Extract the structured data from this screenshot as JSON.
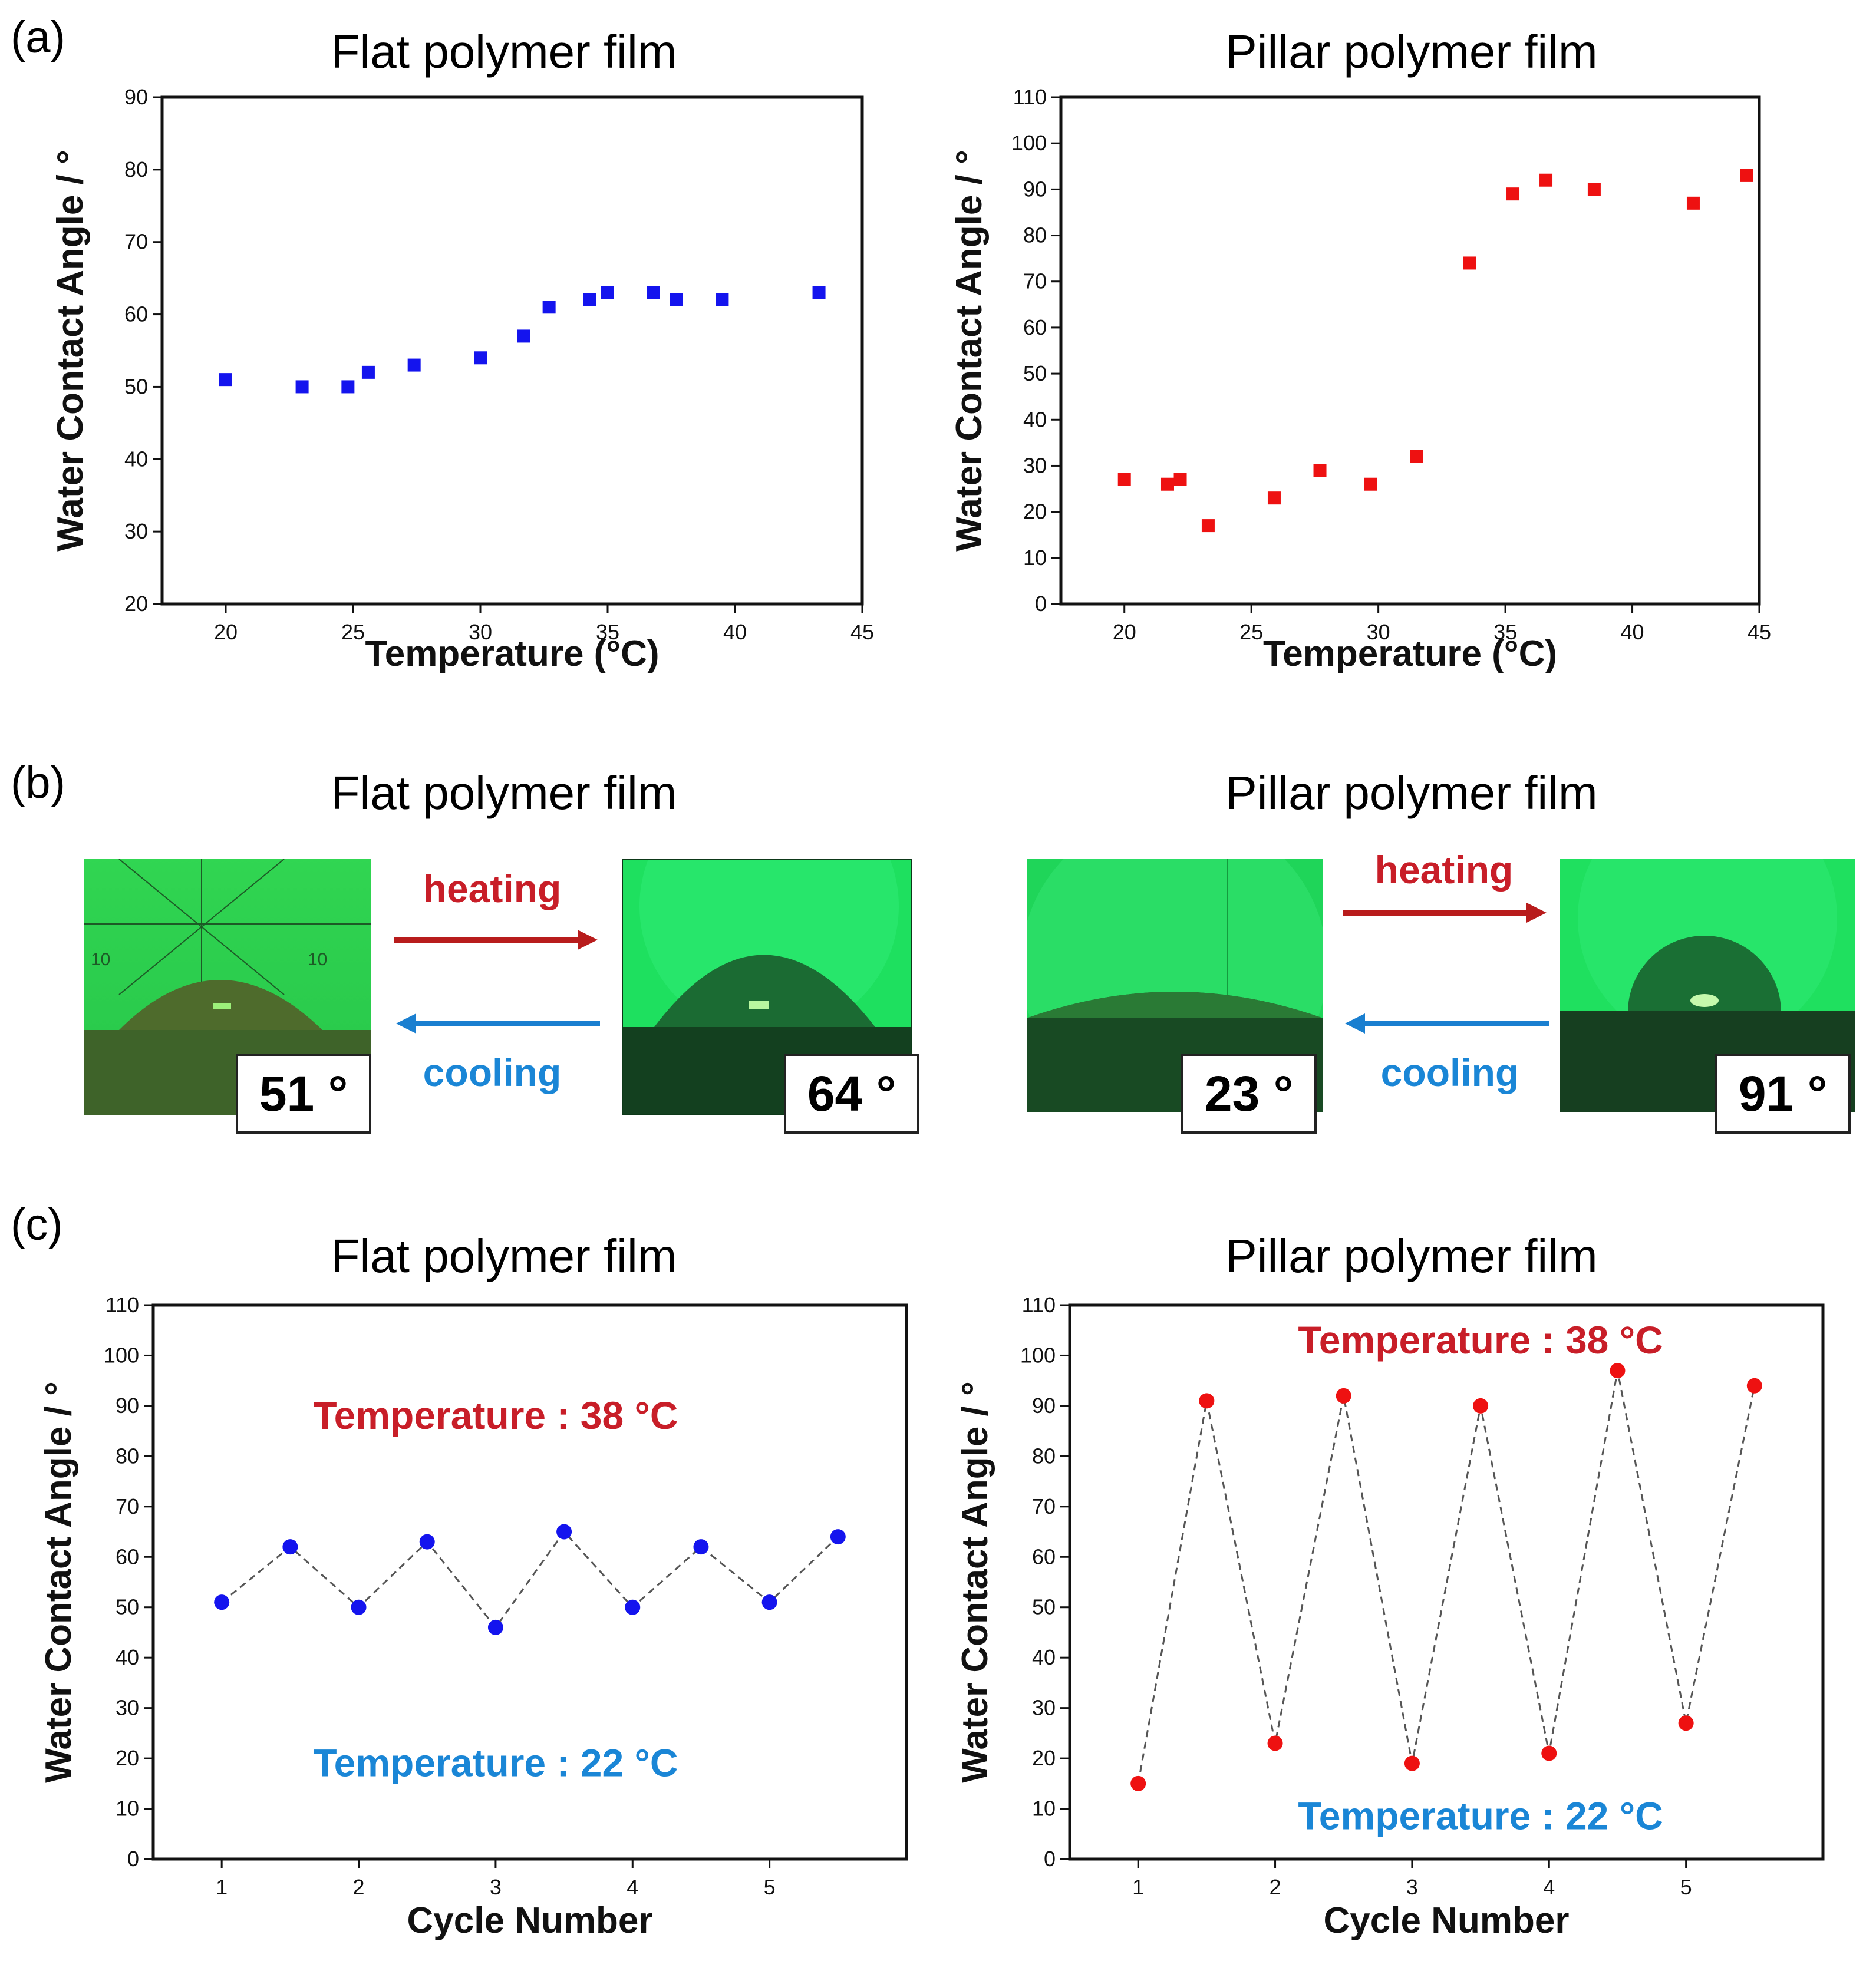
{
  "panels": {
    "a": "(a)",
    "b": "(b)",
    "c": "(c)"
  },
  "colors": {
    "blue": "#1414ee",
    "red": "#ee1111",
    "label_red": "#c81e28",
    "label_blue": "#1a86d6",
    "arrow_red": "#b81c1c",
    "arrow_blue": "#1a7fd0",
    "green_bg": "#1bd65e"
  },
  "photos": {
    "title_flat": "Flat polymer film",
    "title_pillar": "Pillar polymer film",
    "heating": "heating",
    "cooling": "cooling",
    "flat_cold_angle": "51 °",
    "flat_hot_angle": "64 °",
    "pillar_cold_angle": "23 °",
    "pillar_hot_angle": "91 °"
  },
  "chart_data": [
    {
      "type": "scatter",
      "title": "Flat polymer film",
      "xlabel": "Temperature (°C)",
      "ylabel": "Water Contact Angle / °",
      "xlim": [
        17.5,
        45
      ],
      "ylim": [
        20,
        90
      ],
      "xticks": [
        20,
        25,
        30,
        35,
        40,
        45
      ],
      "yticks": [
        20,
        30,
        40,
        50,
        60,
        70,
        80,
        90
      ],
      "x": [
        20,
        23,
        24.8,
        25.6,
        27.4,
        30,
        31.7,
        32.7,
        34.3,
        35,
        36.8,
        37.7,
        39.5,
        43.3
      ],
      "y": [
        51,
        50,
        50,
        52,
        53,
        54,
        57,
        61,
        62,
        63,
        63,
        62,
        62,
        63
      ],
      "marker": "square",
      "color": "#1414ee"
    },
    {
      "type": "scatter",
      "title": "Pillar polymer film",
      "xlabel": "Temperature (°C)",
      "ylabel": "Water Contact Angle / °",
      "xlim": [
        17.5,
        45
      ],
      "ylim": [
        0,
        110
      ],
      "xticks": [
        20,
        25,
        30,
        35,
        40,
        45
      ],
      "yticks": [
        0,
        10,
        20,
        30,
        40,
        50,
        60,
        70,
        80,
        90,
        100,
        110
      ],
      "x": [
        20,
        21.7,
        22.2,
        23.3,
        25.9,
        27.7,
        29.7,
        31.5,
        33.6,
        35.3,
        36.6,
        38.5,
        42.4,
        44.5
      ],
      "y": [
        27,
        26,
        27,
        17,
        23,
        29,
        26,
        32,
        74,
        89,
        92,
        90,
        87,
        93
      ],
      "marker": "square",
      "color": "#ee1111"
    },
    {
      "type": "line",
      "title": "Flat polymer film",
      "xlabel": "Cycle Number",
      "ylabel": "Water Contact Angle / °",
      "xlim": [
        0.5,
        6
      ],
      "ylim": [
        0,
        110
      ],
      "xticks": [
        1,
        2,
        3,
        4,
        5
      ],
      "yticks": [
        0,
        10,
        20,
        30,
        40,
        50,
        60,
        70,
        80,
        90,
        100,
        110
      ],
      "x": [
        1,
        1.5,
        2,
        2.5,
        3,
        3.5,
        4,
        4.5,
        5,
        5.5
      ],
      "y": [
        51,
        62,
        50,
        63,
        46,
        65,
        50,
        62,
        51,
        64
      ],
      "marker": "circle",
      "color": "#1414ee",
      "annotations": [
        {
          "text": "Temperature : 38 °C",
          "color": "#c81e28",
          "x": 3,
          "y": 88
        },
        {
          "text": "Temperature : 22 °C",
          "color": "#1a86d6",
          "x": 3,
          "y": 19
        }
      ]
    },
    {
      "type": "line",
      "title": "Pillar polymer film",
      "xlabel": "Cycle Number",
      "ylabel": "Water Contact Angle / °",
      "xlim": [
        0.5,
        6
      ],
      "ylim": [
        0,
        110
      ],
      "xticks": [
        1,
        2,
        3,
        4,
        5
      ],
      "yticks": [
        0,
        10,
        20,
        30,
        40,
        50,
        60,
        70,
        80,
        90,
        100,
        110
      ],
      "x": [
        1,
        1.5,
        2,
        2.5,
        3,
        3.5,
        4,
        4.5,
        5,
        5.5
      ],
      "y": [
        15,
        91,
        23,
        92,
        19,
        90,
        21,
        97,
        27,
        94
      ],
      "marker": "circle",
      "color": "#ee1111",
      "annotations": [
        {
          "text": "Temperature : 38 °C",
          "color": "#c81e28",
          "x": 3.5,
          "y": 103
        },
        {
          "text": "Temperature : 22 °C",
          "color": "#1a86d6",
          "x": 3.5,
          "y": 8.5
        }
      ]
    }
  ]
}
